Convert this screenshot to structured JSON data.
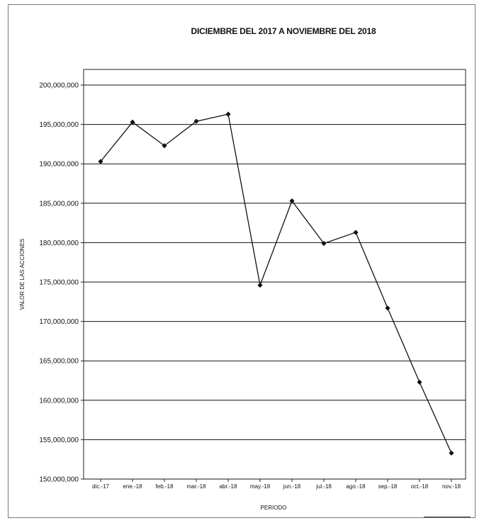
{
  "chart_data": {
    "type": "line",
    "title": "DICIEMBRE DEL 2017 A NOVIEMBRE DEL 2018",
    "xlabel": "PERIODO",
    "ylabel": "VALOR DE LAS ACCIONES",
    "categories": [
      "dic.-17",
      "ene.-18",
      "feb.-18",
      "mar.-18",
      "abr.-18",
      "may.-18",
      "jun.-18",
      "jul.-18",
      "ago.-18",
      "sep.-18",
      "oct.-18",
      "nov.-18"
    ],
    "series": [
      {
        "values": [
          190300000,
          195300000,
          192300000,
          195400000,
          196300000,
          174600000,
          185300000,
          179900000,
          181300000,
          171700000,
          162300000,
          153300000
        ]
      }
    ],
    "ylim": [
      150000000,
      200000000
    ],
    "ytick_labels": [
      "150,000,000",
      "155,000,000",
      "160,000,000",
      "165,000,000",
      "170,000,000",
      "175,000,000",
      "180,000,000",
      "185,000,000",
      "190,000,000",
      "195,000,000",
      "200,000,000"
    ],
    "grid": true,
    "legend": "none",
    "colors": {
      "line": "#111111",
      "marker": "#111111",
      "grid": "#111111"
    }
  }
}
